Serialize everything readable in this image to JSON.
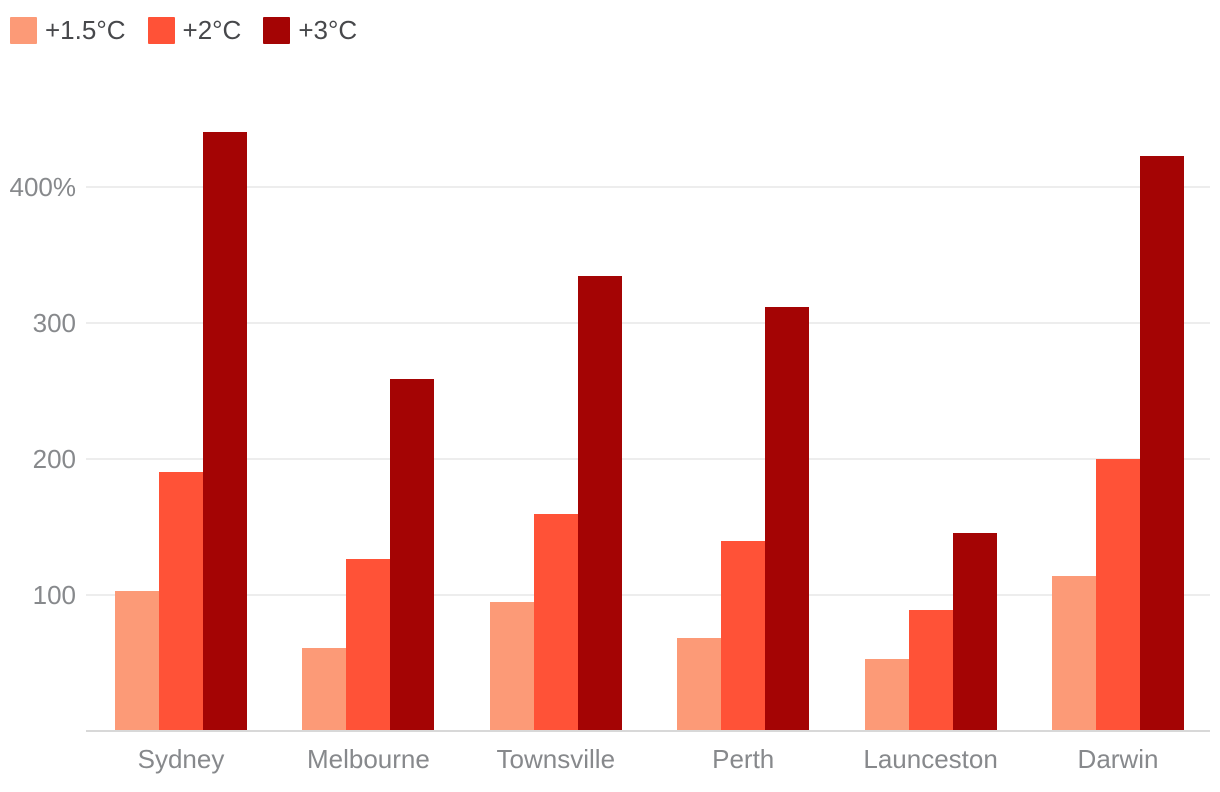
{
  "chart_data": {
    "type": "bar",
    "title": "",
    "categories": [
      "Sydney",
      "Melbourne",
      "Townsville",
      "Perth",
      "Launceston",
      "Darwin"
    ],
    "series": [
      {
        "name": "+1.5°C",
        "color": "#FC9A77",
        "values": [
          102,
          60,
          94,
          68,
          52,
          113
        ]
      },
      {
        "name": "+2°C",
        "color": "#FF5237",
        "values": [
          190,
          126,
          159,
          139,
          88,
          199
        ]
      },
      {
        "name": "+3°C",
        "color": "#A40404",
        "values": [
          440,
          258,
          334,
          311,
          145,
          422
        ]
      }
    ],
    "xlabel": "",
    "ylabel": "",
    "y_unit": "%",
    "ylim": [
      0,
      470
    ],
    "grid": true,
    "legend_position": "top-left"
  },
  "legend": {
    "items": [
      {
        "label": "+1.5°C",
        "color": "#FC9A77"
      },
      {
        "label": "+2°C",
        "color": "#FF5237"
      },
      {
        "label": "+3°C",
        "color": "#A40404"
      }
    ]
  },
  "y_axis": {
    "ticks": [
      {
        "value": 400,
        "label": "400%"
      },
      {
        "value": 300,
        "label": "300"
      },
      {
        "value": 200,
        "label": "200"
      },
      {
        "value": 100,
        "label": "100"
      }
    ]
  },
  "colors": {
    "background": "#FFFFFF",
    "grid": "#EDEDED",
    "axis_line": "#D8D8D8",
    "tick_text": "#87898C",
    "category_text": "#87898C",
    "legend_text": "#47484B"
  }
}
